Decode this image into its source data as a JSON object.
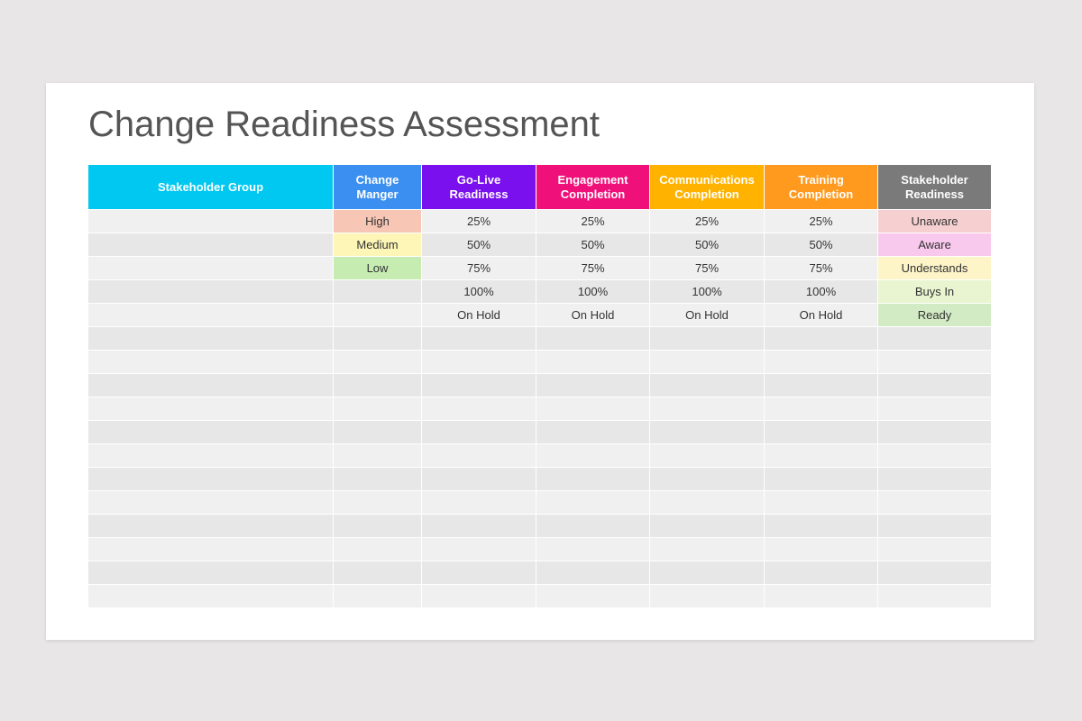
{
  "title": "Change Readiness Assessment",
  "table": {
    "headers": [
      "Stakeholder Group",
      "Change Manger",
      "Go-Live Readiness",
      "Engagement Completion",
      "Communications Completion",
      "Training Completion",
      "Stakeholder Readiness"
    ],
    "header_colors": [
      "#00c8f0",
      "#3a8ff0",
      "#7a10ee",
      "#f0107a",
      "#ffb300",
      "#ff9a1f",
      "#7a7a7a"
    ],
    "rows": [
      [
        null,
        "High",
        "25%",
        "25%",
        "25%",
        "25%",
        "Unaware"
      ],
      [
        null,
        "Medium",
        "50%",
        "50%",
        "50%",
        "50%",
        "Aware"
      ],
      [
        null,
        "Low",
        "75%",
        "75%",
        "75%",
        "75%",
        "Understands"
      ],
      [
        null,
        null,
        "100%",
        "100%",
        "100%",
        "100%",
        "Buys In"
      ],
      [
        null,
        null,
        "On Hold",
        "On Hold",
        "On Hold",
        "On Hold",
        "Ready"
      ],
      [
        null,
        null,
        null,
        null,
        null,
        null,
        null
      ],
      [
        null,
        null,
        null,
        null,
        null,
        null,
        null
      ],
      [
        null,
        null,
        null,
        null,
        null,
        null,
        null
      ],
      [
        null,
        null,
        null,
        null,
        null,
        null,
        null
      ],
      [
        null,
        null,
        null,
        null,
        null,
        null,
        null
      ],
      [
        null,
        null,
        null,
        null,
        null,
        null,
        null
      ],
      [
        null,
        null,
        null,
        null,
        null,
        null,
        null
      ],
      [
        null,
        null,
        null,
        null,
        null,
        null,
        null
      ],
      [
        null,
        null,
        null,
        null,
        null,
        null,
        null
      ],
      [
        null,
        null,
        null,
        null,
        null,
        null,
        null
      ],
      [
        null,
        null,
        null,
        null,
        null,
        null,
        null
      ],
      [
        null,
        null,
        null,
        null,
        null,
        null,
        null
      ]
    ],
    "cell_colors": {
      "1": [
        "#f8c6b4",
        "#fdf6b6",
        "#c6ecb2"
      ],
      "6": [
        "#f6cfd0",
        "#f8c9ec",
        "#fdf4c8",
        "#e8f5d0",
        "#d3ebc5"
      ]
    }
  }
}
